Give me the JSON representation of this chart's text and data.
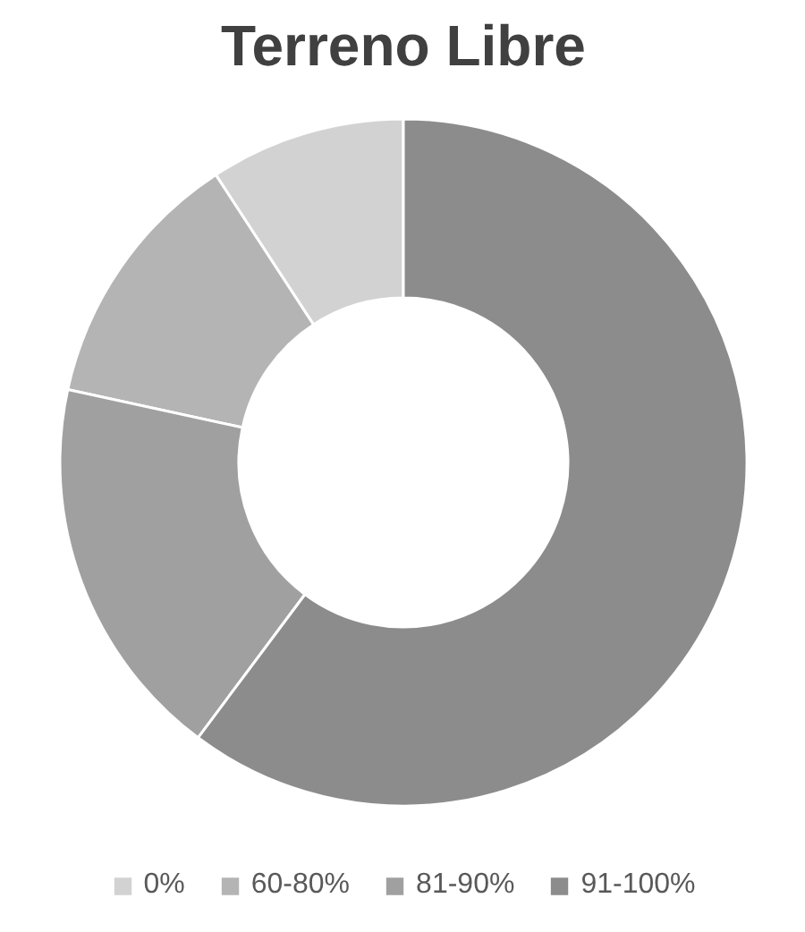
{
  "chart_data": {
    "type": "donut",
    "title": "Terreno Libre",
    "categories": [
      "0%",
      "60-80%",
      "81-90%",
      "91-100%"
    ],
    "values": [
      9.2,
      12.4,
      18.2,
      60.2
    ],
    "colors": [
      "#d2d2d2",
      "#b4b4b4",
      "#a0a0a0",
      "#8c8c8c"
    ],
    "legend": "bottom"
  }
}
